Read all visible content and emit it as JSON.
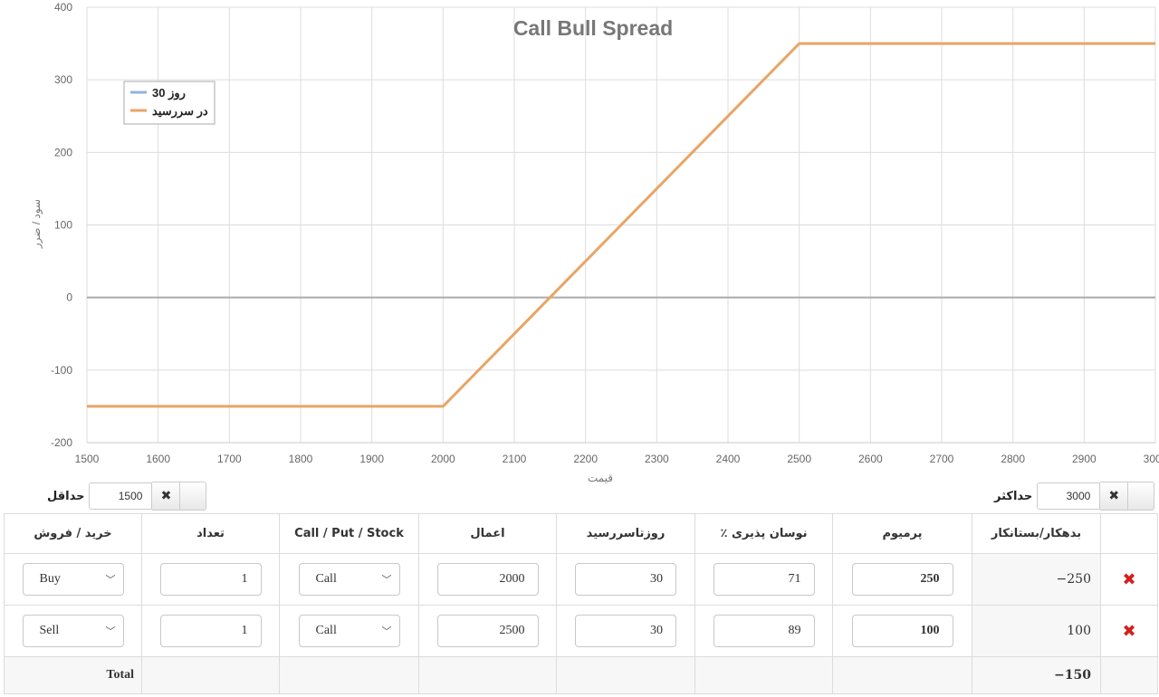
{
  "chart_data": {
    "type": "line",
    "title": "Call Bull Spread",
    "xlabel": "قیمت",
    "ylabel": "سود / ضرر",
    "xlim": [
      1500,
      3000
    ],
    "ylim": [
      -200,
      400
    ],
    "x_ticks": [
      1500,
      1600,
      1700,
      1800,
      1900,
      2000,
      2100,
      2200,
      2300,
      2400,
      2500,
      2600,
      2700,
      2800,
      2900,
      3000
    ],
    "y_ticks": [
      -200,
      -100,
      0,
      100,
      200,
      300,
      400
    ],
    "grid": true,
    "legend_position": "top-left",
    "series": [
      {
        "name": "روز 30",
        "color": "#8fb4e0",
        "x": [],
        "y": []
      },
      {
        "name": "در سررسید",
        "color": "#e8a565",
        "x": [
          1500,
          2000,
          2500,
          3000
        ],
        "y": [
          -150,
          -150,
          350,
          350
        ]
      }
    ]
  },
  "controls": {
    "min_label": "حداقل",
    "min_value": "1500",
    "max_label": "حداکثر",
    "max_value": "3000",
    "clear_icon": "close-icon"
  },
  "table": {
    "headers": {
      "side": "خرید / فروش",
      "qty": "تعداد",
      "type": "Call / Put / Stock",
      "strike": "اعمال",
      "days": "روزتاسررسید",
      "vol": "٪ نوسان پذیری",
      "premium": "پرمیوم",
      "balance": "بدهکار/بستانکار"
    },
    "rows": [
      {
        "side": "Buy",
        "qty": "1",
        "type": "Call",
        "strike": "2000",
        "days": "30",
        "vol": "71",
        "premium": "250",
        "balance": "−250"
      },
      {
        "side": "Sell",
        "qty": "1",
        "type": "Call",
        "strike": "2500",
        "days": "30",
        "vol": "89",
        "premium": "100",
        "balance": "100"
      }
    ],
    "total_label": "Total",
    "total_value": "−150",
    "delete_icon": "delete-x-icon",
    "colors": {
      "delete": "#d42020",
      "payoff_line": "#e8a565",
      "day30_line": "#8fb4e0"
    }
  }
}
